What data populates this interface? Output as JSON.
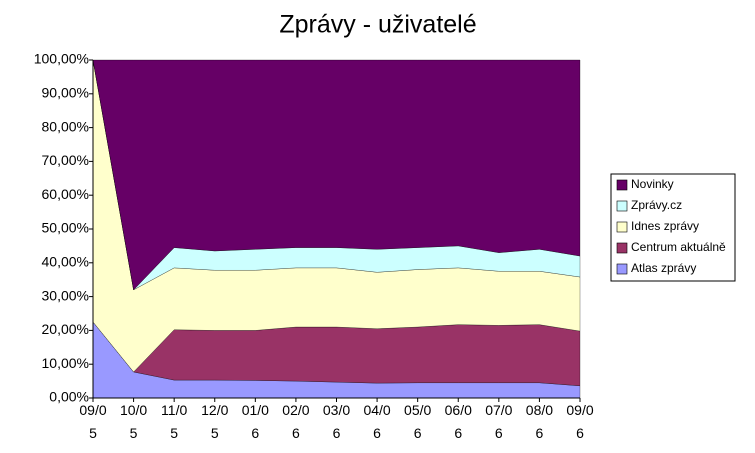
{
  "chart_data": {
    "type": "stacked_area_100",
    "title": "Zprávy - uživatelé",
    "categories": [
      "09/05",
      "10/05",
      "11/05",
      "12/05",
      "01/06",
      "02/06",
      "03/06",
      "04/06",
      "05/06",
      "06/06",
      "07/06",
      "08/06",
      "09/06"
    ],
    "series": [
      {
        "name": "Atlas zprávy",
        "color": "#9999ff",
        "values": [
          22.5,
          7.7,
          5.3,
          5.3,
          5.2,
          5.0,
          4.7,
          4.4,
          4.5,
          4.5,
          4.5,
          4.5,
          3.6
        ]
      },
      {
        "name": "Centrum aktuálně",
        "color": "#993366",
        "values": [
          0,
          0,
          14.9,
          14.7,
          14.8,
          16.0,
          16.3,
          16.1,
          16.5,
          17.2,
          17.0,
          17.2,
          16.2
        ]
      },
      {
        "name": "Idnes zprávy",
        "color": "#ffffcc",
        "values": [
          77.5,
          24.3,
          18.3,
          17.8,
          17.8,
          17.5,
          17.5,
          16.7,
          17.0,
          16.8,
          16.0,
          15.8,
          16.0
        ]
      },
      {
        "name": "Zprávy.cz",
        "color": "#ccffff",
        "values": [
          0,
          0,
          6.0,
          5.7,
          6.2,
          6.0,
          6.0,
          6.8,
          6.5,
          6.5,
          5.5,
          6.5,
          6.2
        ]
      },
      {
        "name": "Novinky",
        "color": "#660066",
        "values": [
          0,
          68,
          55.5,
          56.5,
          56,
          55.5,
          55.5,
          56,
          55.5,
          55,
          57,
          56,
          58
        ]
      }
    ],
    "ylim": [
      0,
      100
    ],
    "yticks": [
      {
        "value": 0,
        "label": "0,00%"
      },
      {
        "value": 10,
        "label": "10,00%"
      },
      {
        "value": 20,
        "label": "20,00%"
      },
      {
        "value": 30,
        "label": "30,00%"
      },
      {
        "value": 40,
        "label": "40,00%"
      },
      {
        "value": 50,
        "label": "50,00%"
      },
      {
        "value": 60,
        "label": "60,00%"
      },
      {
        "value": 70,
        "label": "70,00%"
      },
      {
        "value": 80,
        "label": "80,00%"
      },
      {
        "value": 90,
        "label": "90,00%"
      },
      {
        "value": 100,
        "label": "100,00%"
      }
    ],
    "legend": "right"
  }
}
